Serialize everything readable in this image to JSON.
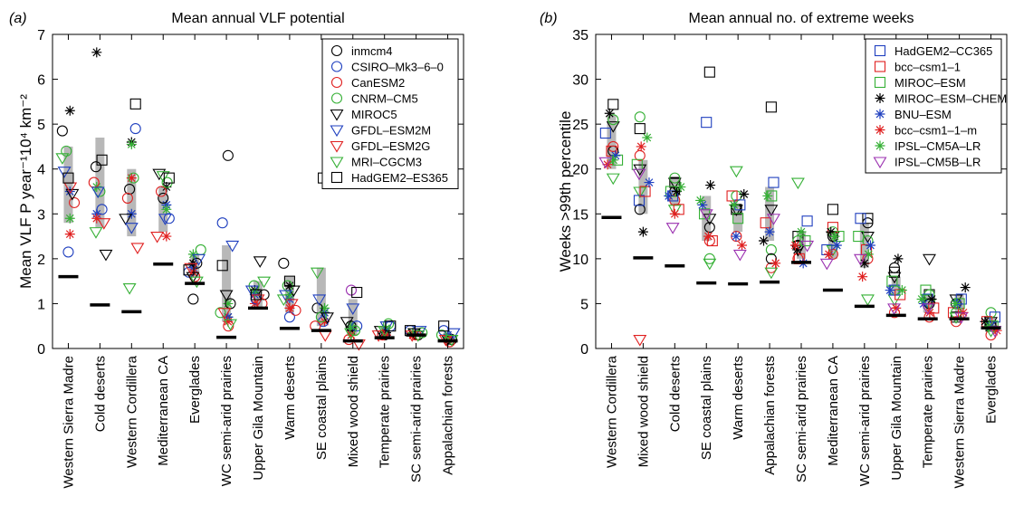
{
  "chart_data": [
    {
      "type": "scatter",
      "panel_label": "(a)",
      "title": "Mean annual VLF potential",
      "ylabel": "Mean VLF P year⁻¹10⁴ km⁻²",
      "ylim": [
        0,
        7
      ],
      "yticks": [
        0,
        1,
        2,
        3,
        4,
        5,
        6,
        7
      ],
      "grid": false,
      "legend_position": "top-right",
      "categories": [
        "Western Sierra Madre",
        "Cold deserts",
        "Western Cordillera",
        "Mediterranean CA",
        "Everglades",
        "WC semi-arid prairies",
        "Upper Gila Mountain",
        "Warm deserts",
        "SE coastal plains",
        "Mixed wood shield",
        "Temperate prairies",
        "SC semi-arid prairies",
        "Appalachian forests"
      ],
      "observed": [
        1.6,
        0.97,
        0.82,
        1.88,
        1.45,
        0.25,
        0.9,
        0.45,
        0.4,
        0.17,
        0.24,
        0.3,
        0.17
      ],
      "range_bars": [
        [
          2.8,
          4.5
        ],
        [
          2.7,
          4.7
        ],
        [
          2.5,
          4.0
        ],
        [
          2.6,
          3.6
        ],
        [
          1.6,
          2.1
        ],
        [
          0.6,
          2.3
        ],
        [
          0.9,
          1.5
        ],
        [
          0.8,
          1.6
        ],
        [
          0.5,
          1.8
        ],
        [
          0.3,
          1.1
        ],
        [
          0.28,
          0.5
        ],
        [
          0.25,
          0.4
        ],
        [
          0.15,
          0.35
        ]
      ],
      "series": [
        {
          "name": "inmcm4",
          "marker": "circle",
          "color": "#000000",
          "values": [
            4.85,
            4.05,
            3.55,
            3.35,
            1.9,
            1.0,
            1.2,
            1.9,
            0.9,
            0.5,
            0.3,
            0.3,
            0.2
          ]
        },
        {
          "name": "CSIRO–Mk3–6–0",
          "marker": "circle",
          "color": "#1f3fbf",
          "values": [
            2.15,
            3.1,
            4.9,
            2.9,
            1.7,
            2.8,
            1.1,
            0.7,
            0.6,
            0.5,
            0.5,
            0.4,
            0.4
          ]
        },
        {
          "name": "CanESM2",
          "marker": "circle",
          "color": "#e02020",
          "values": [
            3.25,
            3.7,
            3.35,
            3.5,
            1.6,
            0.5,
            1.0,
            0.85,
            0.5,
            0.2,
            0.3,
            0.3,
            0.15
          ]
        },
        {
          "name": "CNRM–CM5",
          "marker": "circle",
          "color": "#35b035",
          "values": [
            4.4,
            3.5,
            3.8,
            3.7,
            2.2,
            0.8,
            1.4,
            1.4,
            0.7,
            0.4,
            0.55,
            0.35,
            0.3
          ]
        },
        {
          "name": "MIROC5",
          "marker": "tri-down",
          "color": "#000000",
          "values": [
            3.45,
            2.1,
            2.9,
            3.9,
            1.6,
            1.2,
            1.95,
            1.3,
            0.7,
            0.6,
            0.4,
            0.35,
            0.2
          ]
        },
        {
          "name": "GFDL–ESM2M",
          "marker": "tri-down",
          "color": "#1f3fbf",
          "values": [
            3.95,
            3.5,
            2.7,
            2.9,
            2.0,
            2.3,
            1.3,
            1.2,
            1.1,
            0.9,
            0.5,
            0.4,
            0.35
          ]
        },
        {
          "name": "GFDL–ESM2G",
          "marker": "tri-down",
          "color": "#e02020",
          "values": [
            3.6,
            2.8,
            2.25,
            2.5,
            1.8,
            0.8,
            1.1,
            1.0,
            0.3,
            0.1,
            0.3,
            0.3,
            0.2
          ]
        },
        {
          "name": "MRI–CGCM3",
          "marker": "tri-down",
          "color": "#35b035",
          "values": [
            4.25,
            2.6,
            1.35,
            3.85,
            1.5,
            0.55,
            1.5,
            1.1,
            1.7,
            0.35,
            0.4,
            0.3,
            0.2
          ]
        },
        {
          "name": "HadGEM2–ES365",
          "marker": "square",
          "color": "#000000",
          "values": [
            3.8,
            4.2,
            5.45,
            3.8,
            1.75,
            1.85,
            1.2,
            1.5,
            3.8,
            1.25,
            0.5,
            0.4,
            0.5
          ]
        }
      ],
      "extra_markers": [
        {
          "marker": "asterisk",
          "color": "#000000",
          "values": [
            5.3,
            6.6,
            4.6,
            3.6,
            1.9,
            0.7,
            1.3,
            1.4,
            0.8,
            0.4,
            0.35,
            0.3,
            0.25
          ]
        },
        {
          "marker": "asterisk",
          "color": "#1f3fbf",
          "values": [
            3.5,
            3.0,
            3.0,
            3.2,
            1.8,
            0.7,
            1.2,
            1.1,
            0.8,
            0.5,
            0.3,
            0.35,
            0.3
          ]
        },
        {
          "marker": "asterisk",
          "color": "#e02020",
          "values": [
            2.55,
            2.9,
            3.8,
            2.5,
            1.7,
            0.6,
            1.0,
            0.9,
            0.6,
            0.3,
            0.3,
            0.3,
            0.2
          ]
        },
        {
          "marker": "asterisk",
          "color": "#35b035",
          "values": [
            2.9,
            3.6,
            4.55,
            3.1,
            2.1,
            1.0,
            1.25,
            1.2,
            0.9,
            0.5,
            0.45,
            0.35,
            0.25
          ]
        },
        {
          "marker": "circle",
          "color": "#000000",
          "values": [
            null,
            null,
            null,
            null,
            1.1,
            4.3,
            null,
            null,
            null,
            null,
            null,
            null,
            null
          ]
        },
        {
          "marker": "circle",
          "color": "#9b30b0",
          "values": [
            null,
            null,
            null,
            null,
            null,
            null,
            null,
            null,
            null,
            1.3,
            null,
            null,
            null
          ]
        }
      ]
    },
    {
      "type": "scatter",
      "panel_label": "(b)",
      "title": "Mean annual no. of extreme weeks",
      "ylabel": "Weeks >99th percentile",
      "ylim": [
        0,
        35
      ],
      "yticks": [
        0,
        5,
        10,
        15,
        20,
        25,
        30,
        35
      ],
      "grid": false,
      "legend_position": "top-right",
      "categories": [
        "Western Cordillera",
        "Mixed wood shield",
        "Cold deserts",
        "SE coastal plains",
        "Warm deserts",
        "Appalachian forests",
        "SC semi-arid prairies",
        "Mediterranean CA",
        "WC semi-arid prairies",
        "Upper Gila Mountain",
        "Temperate prairies",
        "Western Sierra Madre",
        "Everglades"
      ],
      "observed": [
        14.6,
        10.1,
        9.2,
        7.3,
        7.2,
        7.4,
        9.6,
        6.5,
        4.7,
        3.7,
        3.3,
        3.3,
        2.3
      ],
      "range_bars": [
        [
          20,
          26
        ],
        [
          15,
          21
        ],
        [
          16,
          19
        ],
        [
          12,
          17
        ],
        [
          13,
          16
        ],
        [
          12,
          18
        ],
        [
          10,
          13
        ],
        [
          10,
          13
        ],
        [
          9,
          14
        ],
        [
          6,
          8
        ],
        [
          4,
          6
        ],
        [
          4,
          6
        ],
        [
          2,
          3.5
        ]
      ],
      "series": [
        {
          "name": "HadGEM2–CC365",
          "marker": "square",
          "color": "#1f3fbf",
          "values": [
            24.0,
            16.5,
            17.0,
            25.2,
            16.0,
            18.5,
            14.2,
            11.0,
            14.5,
            6.5,
            5.5,
            5.5,
            3.5
          ]
        },
        {
          "name": "bcc–csm1–1",
          "marker": "square",
          "color": "#e02020",
          "values": [
            22.0,
            17.5,
            15.5,
            12.0,
            17.0,
            14.0,
            10.0,
            13.5,
            11.0,
            6.0,
            4.5,
            4.0,
            3.0
          ]
        },
        {
          "name": "MIROC–ESM",
          "marker": "square",
          "color": "#35b035",
          "values": [
            21.0,
            20.5,
            17.5,
            15.0,
            14.5,
            17.0,
            12.0,
            12.5,
            12.5,
            7.5,
            6.5,
            5.0,
            2.5
          ]
        },
        {
          "name": "MIROC–ESM–CHEM",
          "marker": "asterisk",
          "color": "#000000",
          "values": [
            26.2,
            13.0,
            17.5,
            18.2,
            17.2,
            12.0,
            11.0,
            13.0,
            9.5,
            10.0,
            5.5,
            6.8,
            3.0
          ]
        },
        {
          "name": "BNU–ESM",
          "marker": "asterisk",
          "color": "#1f3fbf",
          "values": [
            21.5,
            18.5,
            17.0,
            16.0,
            12.5,
            13.0,
            9.5,
            11.5,
            11.5,
            6.5,
            5.0,
            5.0,
            2.5
          ]
        },
        {
          "name": "bcc–csm1–1–m",
          "marker": "asterisk",
          "color": "#e02020",
          "values": [
            20.5,
            22.5,
            15.0,
            12.5,
            11.5,
            9.5,
            11.5,
            10.5,
            8.0,
            4.5,
            4.0,
            4.0,
            2.0
          ]
        },
        {
          "name": "IPSL–CM5A–LR",
          "marker": "asterisk",
          "color": "#35b035",
          "values": [
            21.0,
            23.5,
            18.0,
            16.5,
            16.0,
            17.0,
            13.0,
            12.5,
            10.5,
            6.5,
            5.5,
            5.0,
            2.5
          ]
        },
        {
          "name": "IPSL–CM5B–LR",
          "marker": "tri-down",
          "color": "#9b30b0",
          "values": [
            20.8,
            19.5,
            13.5,
            15.0,
            10.5,
            14.5,
            11.5,
            9.5,
            10.0,
            4.5,
            4.5,
            3.5,
            2.0
          ]
        }
      ],
      "extra_markers": [
        {
          "marker": "square",
          "color": "#000000",
          "values": [
            27.2,
            24.5,
            18.5,
            30.8,
            15.5,
            26.9,
            12.5,
            15.5,
            14.5,
            8.5,
            6.0,
            3.5,
            2.5
          ]
        },
        {
          "marker": "tri-down",
          "color": "#000000",
          "values": [
            24.8,
            20.0,
            18.5,
            14.5,
            15.5,
            15.5,
            11.0,
            12.5,
            12.5,
            8.0,
            10.0,
            5.5,
            3.0
          ]
        },
        {
          "marker": "circle",
          "color": "#35b035",
          "values": [
            25.5,
            25.8,
            19.0,
            10.0,
            17.0,
            11.0,
            12.0,
            13.0,
            12.0,
            6.5,
            6.0,
            4.0,
            4.0
          ]
        },
        {
          "marker": "circle",
          "color": "#e02020",
          "values": [
            22.5,
            21.5,
            16.5,
            12.0,
            12.5,
            9.0,
            10.0,
            10.5,
            10.0,
            4.0,
            3.5,
            3.0,
            1.5
          ]
        },
        {
          "marker": "tri-down",
          "color": "#35b035",
          "values": [
            19.0,
            17.5,
            15.5,
            9.5,
            19.8,
            8.5,
            18.5,
            11.0,
            5.5,
            5.5,
            5.0,
            3.5,
            2.0
          ]
        },
        {
          "marker": "tri-down",
          "color": "#e02020",
          "values": [
            null,
            1.0,
            null,
            null,
            null,
            null,
            null,
            null,
            null,
            null,
            null,
            null,
            null
          ]
        },
        {
          "marker": "circle",
          "color": "#000000",
          "values": [
            22.0,
            15.5,
            17.5,
            13.5,
            15.5,
            10.0,
            11.5,
            12.5,
            14.0,
            9.0,
            5.0,
            5.0,
            2.5
          ]
        }
      ]
    }
  ]
}
